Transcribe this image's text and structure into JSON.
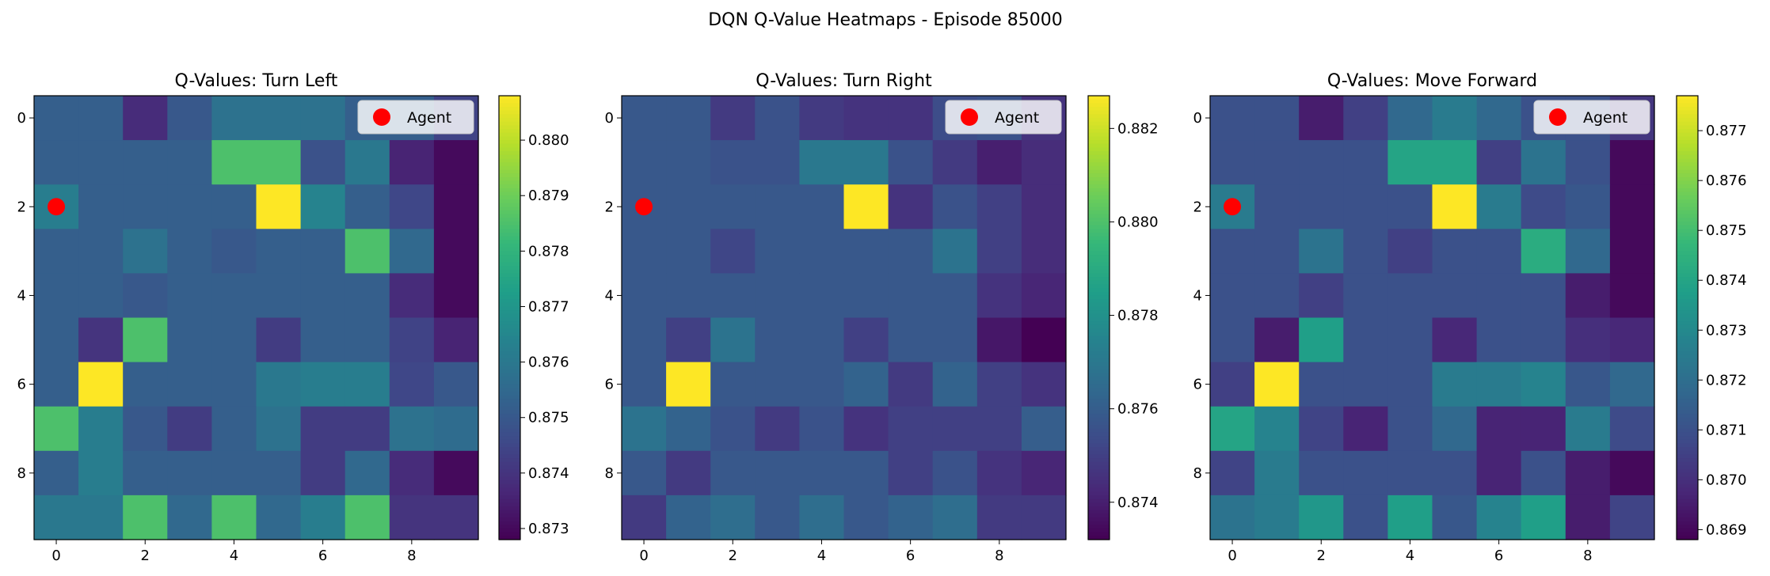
{
  "figure": {
    "suptitle": "DQN Q-Value Heatmaps - Episode 85000",
    "colormap": "viridis",
    "colormap_stops": [
      "#440154",
      "#482878",
      "#3e4a89",
      "#31688e",
      "#26828e",
      "#1f9e89",
      "#35b779",
      "#6ece58",
      "#b5de2b",
      "#fde725"
    ],
    "agent_color": "#ff0000",
    "legend_location": "upper right"
  },
  "chart_data": [
    {
      "type": "heatmap",
      "title": "Q-Values: Turn Left",
      "rows": 10,
      "cols": 10,
      "x_ticks": [
        0,
        2,
        4,
        6,
        8
      ],
      "y_ticks": [
        0,
        2,
        4,
        6,
        8
      ],
      "vmin": 0.8728,
      "vmax": 0.8808,
      "colorbar_ticks": [
        0.873,
        0.874,
        0.875,
        0.876,
        0.877,
        0.878,
        0.879,
        0.88
      ],
      "colorbar_tick_labels": [
        "0.873",
        "0.874",
        "0.875",
        "0.876",
        "0.877",
        "0.878",
        "0.879",
        "0.880"
      ],
      "legend_label": "Agent",
      "agent": {
        "x": 0,
        "y": 2
      },
      "values": [
        [
          0.8752,
          0.8752,
          0.8738,
          0.875,
          0.8758,
          0.8758,
          0.8758,
          0.8752,
          0.8752,
          0.8744
        ],
        [
          0.8752,
          0.8752,
          0.8752,
          0.8752,
          0.8785,
          0.8785,
          0.8748,
          0.876,
          0.8736,
          0.873
        ],
        [
          0.8762,
          0.8752,
          0.8752,
          0.8752,
          0.8752,
          0.8808,
          0.8764,
          0.8752,
          0.8745,
          0.873
        ],
        [
          0.8752,
          0.8752,
          0.8758,
          0.8752,
          0.875,
          0.8752,
          0.8752,
          0.8785,
          0.8755,
          0.873
        ],
        [
          0.8752,
          0.8752,
          0.875,
          0.8752,
          0.8752,
          0.8752,
          0.8752,
          0.8752,
          0.8738,
          0.873
        ],
        [
          0.8752,
          0.874,
          0.8785,
          0.8752,
          0.8752,
          0.8742,
          0.8752,
          0.8752,
          0.8744,
          0.8736
        ],
        [
          0.8752,
          0.8808,
          0.8752,
          0.8752,
          0.8752,
          0.876,
          0.8762,
          0.8762,
          0.8745,
          0.875
        ],
        [
          0.8785,
          0.8762,
          0.875,
          0.8742,
          0.8752,
          0.8758,
          0.8742,
          0.8742,
          0.8758,
          0.8756
        ],
        [
          0.8752,
          0.8762,
          0.8752,
          0.8752,
          0.8752,
          0.8752,
          0.8742,
          0.8755,
          0.8738,
          0.873
        ],
        [
          0.876,
          0.876,
          0.8785,
          0.8755,
          0.8785,
          0.8755,
          0.8762,
          0.8785,
          0.874,
          0.874
        ]
      ]
    },
    {
      "type": "heatmap",
      "title": "Q-Values: Turn Right",
      "rows": 10,
      "cols": 10,
      "x_ticks": [
        0,
        2,
        4,
        6,
        8
      ],
      "y_ticks": [
        0,
        2,
        4,
        6,
        8
      ],
      "vmin": 0.8732,
      "vmax": 0.8827,
      "colorbar_ticks": [
        0.874,
        0.876,
        0.878,
        0.88,
        0.882
      ],
      "colorbar_tick_labels": [
        "0.874",
        "0.876",
        "0.878",
        "0.880",
        "0.882"
      ],
      "legend_label": "Agent",
      "agent": {
        "x": 0,
        "y": 2
      },
      "values": [
        [
          0.8758,
          0.8758,
          0.8748,
          0.8756,
          0.8748,
          0.8746,
          0.8746,
          0.8754,
          0.8756,
          0.8746
        ],
        [
          0.8758,
          0.8758,
          0.8756,
          0.8756,
          0.877,
          0.877,
          0.8756,
          0.8748,
          0.874,
          0.8744
        ],
        [
          0.8758,
          0.8758,
          0.8758,
          0.8758,
          0.8758,
          0.8827,
          0.8746,
          0.8756,
          0.875,
          0.8744
        ],
        [
          0.8758,
          0.8758,
          0.8752,
          0.8758,
          0.8758,
          0.8758,
          0.8758,
          0.8768,
          0.875,
          0.8744
        ],
        [
          0.8758,
          0.8758,
          0.8758,
          0.8758,
          0.8758,
          0.8758,
          0.8758,
          0.8758,
          0.8746,
          0.8742
        ],
        [
          0.8758,
          0.875,
          0.8768,
          0.8758,
          0.8758,
          0.875,
          0.8758,
          0.8758,
          0.8738,
          0.8732
        ],
        [
          0.8758,
          0.8827,
          0.8758,
          0.8758,
          0.8758,
          0.8762,
          0.8748,
          0.8762,
          0.875,
          0.8746
        ],
        [
          0.8768,
          0.8762,
          0.8756,
          0.8748,
          0.8756,
          0.8746,
          0.875,
          0.875,
          0.875,
          0.876
        ],
        [
          0.8758,
          0.8748,
          0.8758,
          0.8758,
          0.8758,
          0.8758,
          0.875,
          0.8756,
          0.8746,
          0.8742
        ],
        [
          0.8748,
          0.8762,
          0.8766,
          0.8758,
          0.8766,
          0.8758,
          0.8762,
          0.8766,
          0.8748,
          0.8748
        ]
      ]
    },
    {
      "type": "heatmap",
      "title": "Q-Values: Move Forward",
      "rows": 10,
      "cols": 10,
      "x_ticks": [
        0,
        2,
        4,
        6,
        8
      ],
      "y_ticks": [
        0,
        2,
        4,
        6,
        8
      ],
      "vmin": 0.8688,
      "vmax": 0.8777,
      "colorbar_ticks": [
        0.869,
        0.87,
        0.871,
        0.872,
        0.873,
        0.874,
        0.875,
        0.876,
        0.877
      ],
      "colorbar_tick_labels": [
        "0.869",
        "0.870",
        "0.871",
        "0.872",
        "0.873",
        "0.874",
        "0.875",
        "0.876",
        "0.877"
      ],
      "legend_label": "Agent",
      "agent": {
        "x": 0,
        "y": 2
      },
      "values": [
        [
          0.871,
          0.871,
          0.8695,
          0.8705,
          0.8718,
          0.8725,
          0.8718,
          0.871,
          0.871,
          0.8702
        ],
        [
          0.871,
          0.871,
          0.871,
          0.871,
          0.874,
          0.874,
          0.8705,
          0.8722,
          0.871,
          0.869
        ],
        [
          0.8725,
          0.871,
          0.871,
          0.871,
          0.871,
          0.8777,
          0.8725,
          0.8708,
          0.8712,
          0.869
        ],
        [
          0.871,
          0.871,
          0.8722,
          0.871,
          0.8705,
          0.871,
          0.871,
          0.8743,
          0.8718,
          0.869
        ],
        [
          0.871,
          0.871,
          0.8705,
          0.871,
          0.871,
          0.871,
          0.871,
          0.871,
          0.8695,
          0.869
        ],
        [
          0.871,
          0.8695,
          0.8738,
          0.871,
          0.871,
          0.8698,
          0.871,
          0.871,
          0.87,
          0.8698
        ],
        [
          0.8705,
          0.8777,
          0.871,
          0.871,
          0.871,
          0.8725,
          0.8725,
          0.8728,
          0.8712,
          0.8718
        ],
        [
          0.874,
          0.8728,
          0.8706,
          0.8697,
          0.871,
          0.8718,
          0.8697,
          0.8697,
          0.8725,
          0.8708
        ],
        [
          0.8706,
          0.8725,
          0.871,
          0.871,
          0.871,
          0.871,
          0.8697,
          0.871,
          0.8695,
          0.869
        ],
        [
          0.8722,
          0.8725,
          0.8735,
          0.871,
          0.8738,
          0.8712,
          0.8728,
          0.8738,
          0.8695,
          0.8706
        ]
      ]
    }
  ]
}
